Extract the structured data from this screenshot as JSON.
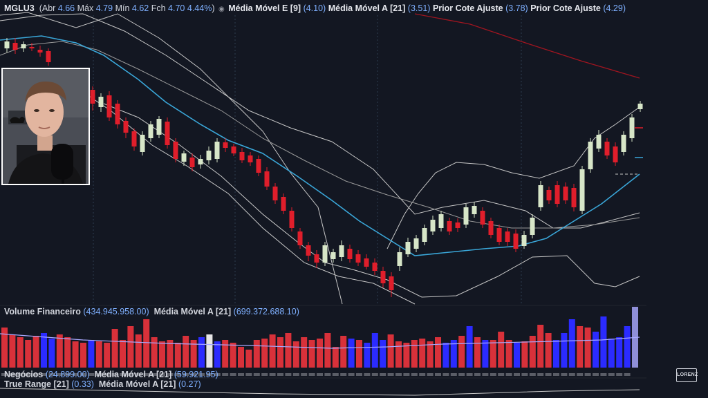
{
  "header": {
    "symbol": "MGLU3",
    "open_label": "Abr",
    "open": "4.66",
    "high_label": "Máx",
    "high": "4.79",
    "low_label": "Mín",
    "low": "4.62",
    "close_label": "Fch",
    "close": "4.70",
    "change": "4.44%",
    "ind1_label": "Média Móvel E [9]",
    "ind1_value": "(4.10)",
    "ind2_label": "Média Móvel A [21]",
    "ind2_value": "(3.51)",
    "ind3_label": "Prior Cote Ajuste",
    "ind3_value": "(3.78)",
    "ind4_label": "Prior Cote Ajuste",
    "ind4_value": "(4.29)"
  },
  "volume_panel": {
    "label": "Volume Financeiro",
    "value": "(434.945.958.00)",
    "ma_label": "Média Móvel A [21]",
    "ma_value": "(699.372.688.10)"
  },
  "negocios_panel": {
    "label": "Negócios",
    "value": "(24.899.00)",
    "ma_label": "Média Móvel A [21]",
    "ma_value": "(59.921.95)"
  },
  "true_range_panel": {
    "label": "True Range [21]",
    "value": "(0.33)",
    "ma_label": "Média Móvel A [21]",
    "ma_value": "(0.27)"
  },
  "logo_text": "LORENZ",
  "colors": {
    "up": "#d7e6c8",
    "down": "#e01e2b",
    "vol_blue": "#2b2bff",
    "vol_red": "#d8313a",
    "ema": "#3aa7d9",
    "sma_red": "#a11520"
  },
  "icons": [
    "eye-icon"
  ]
}
